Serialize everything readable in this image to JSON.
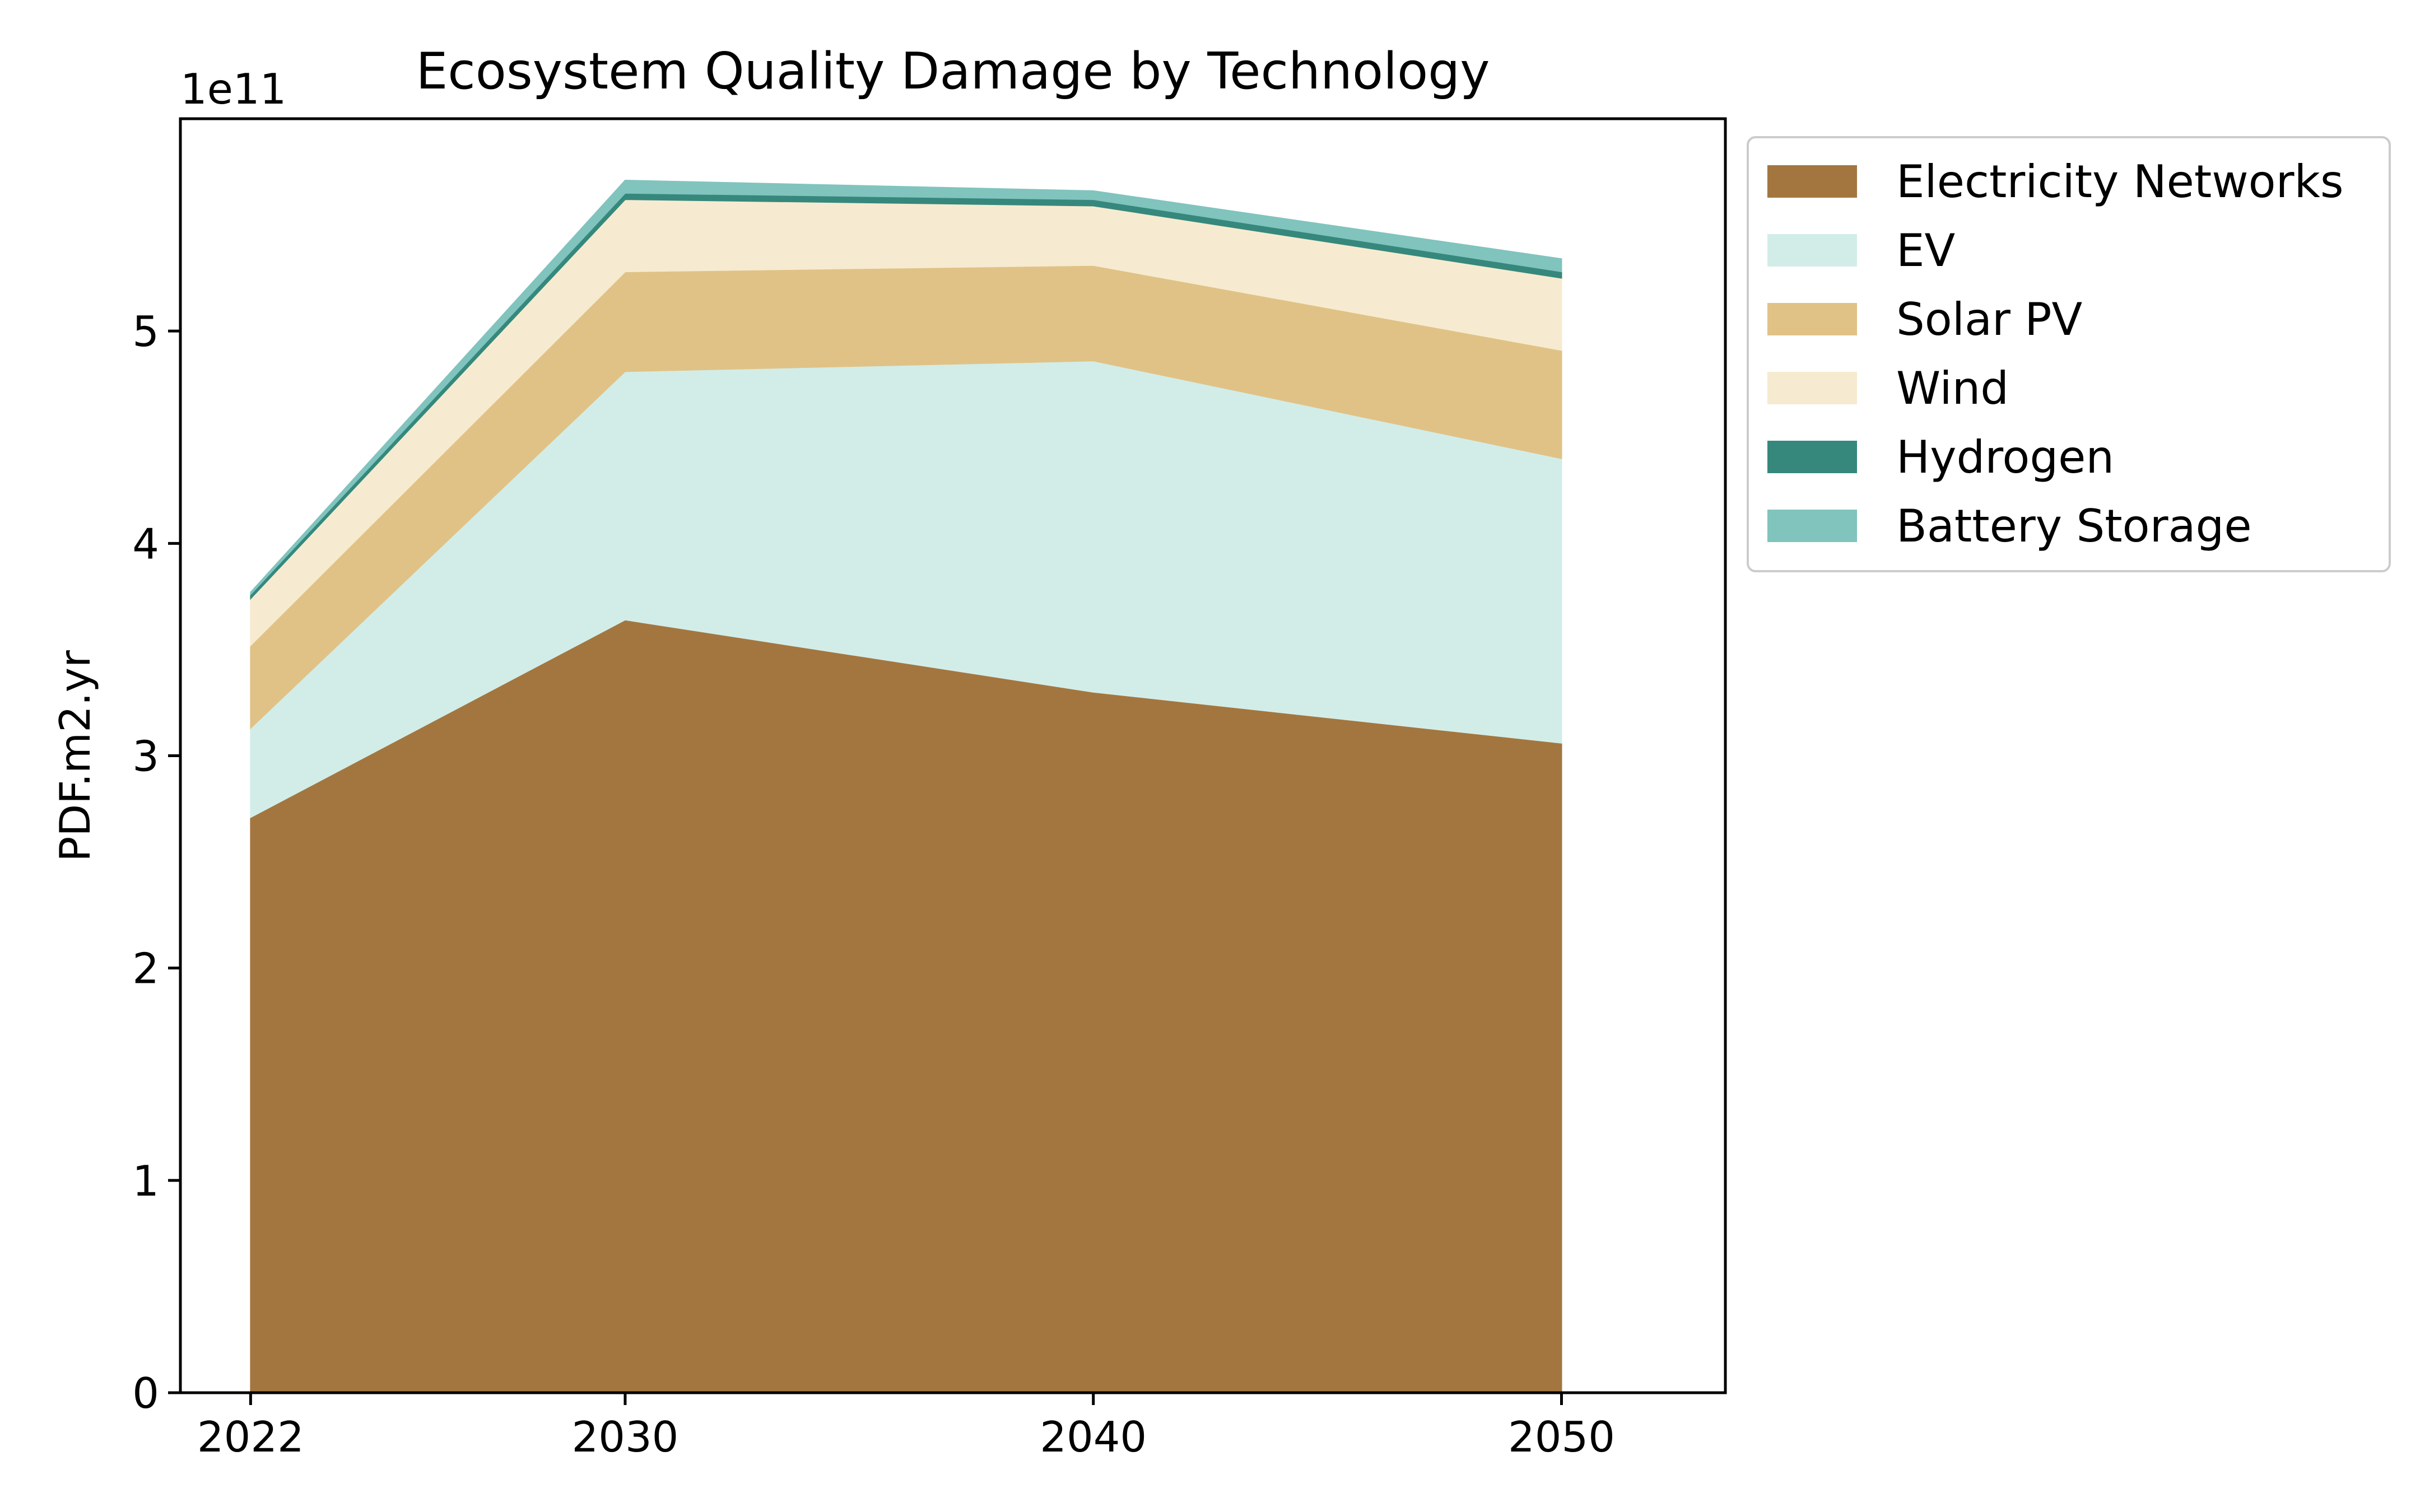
{
  "chart_data": {
    "type": "area",
    "stacked": true,
    "title": "Ecosystem Quality Damage by Technology",
    "ylabel": "PDF.m2.yr",
    "xlabel": "",
    "y_scale_label": "1e11",
    "y_multiplier": 100000000000,
    "x": [
      "2022",
      "2030",
      "2040",
      "2050"
    ],
    "ylim": [
      0,
      6.0
    ],
    "xlim": [
      2020.5,
      2053.5
    ],
    "y_ticks": [
      "0",
      "1",
      "2",
      "3",
      "4",
      "5"
    ],
    "x_ticks": [
      "2022",
      "2030",
      "2040",
      "2050"
    ],
    "grid": false,
    "legend_position": "outside-top-right",
    "series": [
      {
        "name": "Electricity Networks",
        "color": "#a37640",
        "values": [
          2.71,
          3.64,
          3.3,
          3.06
        ]
      },
      {
        "name": "EV",
        "color": "#d2ede8",
        "values": [
          0.42,
          1.17,
          1.56,
          1.34
        ]
      },
      {
        "name": "Solar PV",
        "color": "#e1c286",
        "values": [
          0.39,
          0.47,
          0.45,
          0.51
        ]
      },
      {
        "name": "Wind",
        "color": "#f6ebd0",
        "values": [
          0.22,
          0.34,
          0.28,
          0.34
        ]
      },
      {
        "name": "Hydrogen",
        "color": "#36887d",
        "values": [
          0.02,
          0.03,
          0.03,
          0.03
        ]
      },
      {
        "name": "Battery Storage",
        "color": "#80c4bd",
        "values": [
          0.01,
          0.06,
          0.04,
          0.06
        ]
      }
    ]
  }
}
